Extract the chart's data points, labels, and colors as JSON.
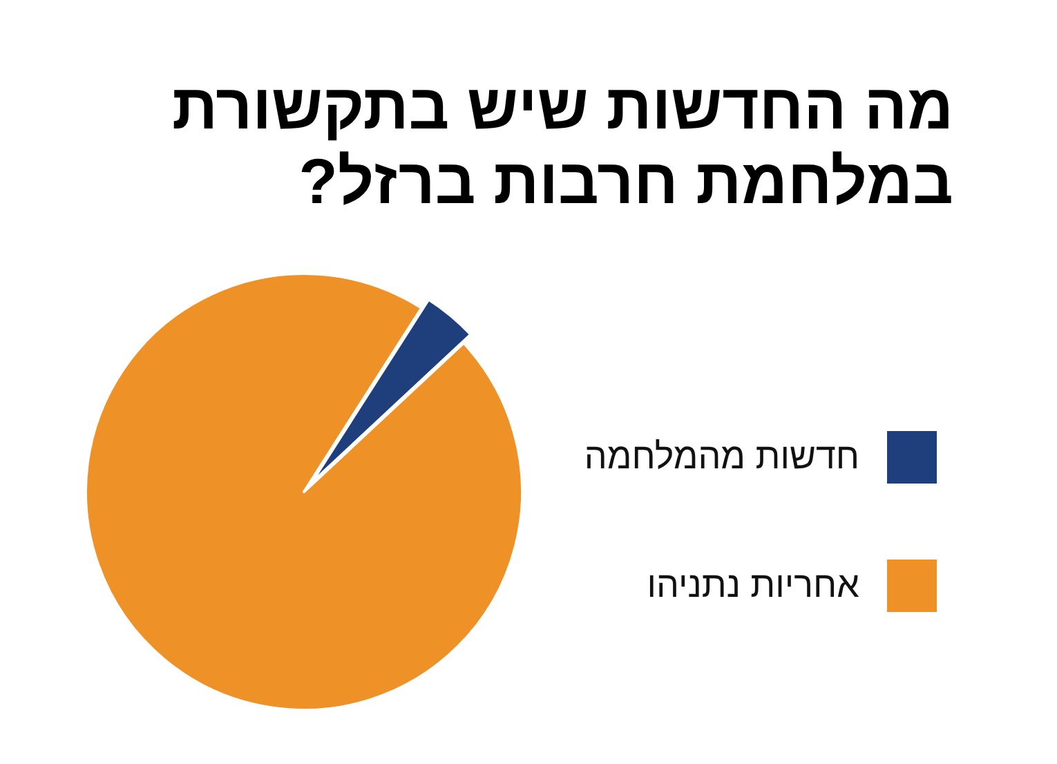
{
  "chart_data": {
    "type": "pie",
    "title": "מה החדשות שיש בתקשורת במלחמת חרבות ברזל?",
    "categories": [
      "חדשות מהמלחמה",
      "אחריות נתניהו"
    ],
    "values": [
      4,
      96
    ],
    "colors": [
      "#1e3f7c",
      "#ee9126"
    ],
    "legend": "right"
  }
}
